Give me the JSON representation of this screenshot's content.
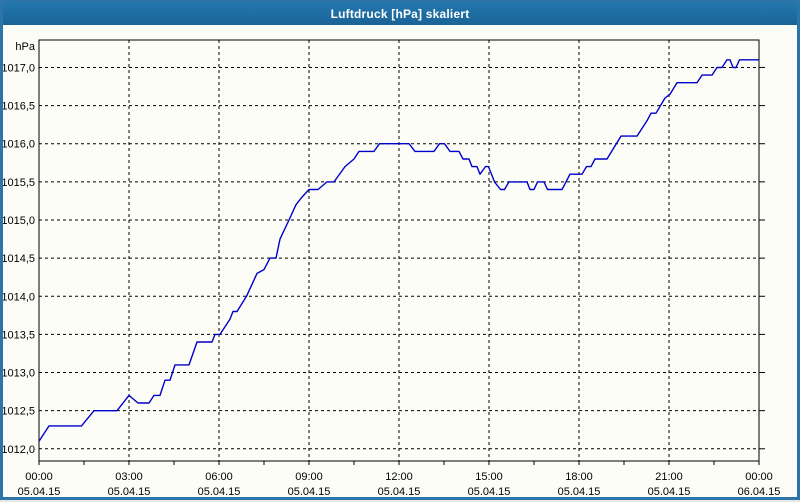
{
  "window": {
    "title": "Luftdruck [hPa] skaliert"
  },
  "colors": {
    "titlebar": "#1e6a9f",
    "window_border": "#2d74a9",
    "plot_border": "#000000",
    "grid": "#000000",
    "line": "#0000cc",
    "background": "#fdfdf8",
    "title_text": "#ffffff",
    "label_text": "#000000"
  },
  "chart_data": {
    "type": "line",
    "title": "Luftdruck [hPa] skaliert",
    "ylabel": "hPa",
    "xlabel": "",
    "grid": "dashed",
    "legend": "none",
    "ylim": [
      1011.84,
      1017.36
    ],
    "xlim_minutes": [
      0,
      1440
    ],
    "x_minor_tick_minutes": 90,
    "y_ticks": [
      {
        "value": 1017.0,
        "label": "1017,0"
      },
      {
        "value": 1016.5,
        "label": "1016,5"
      },
      {
        "value": 1016.0,
        "label": "1016,0"
      },
      {
        "value": 1015.5,
        "label": "1015,5"
      },
      {
        "value": 1015.0,
        "label": "1015,0"
      },
      {
        "value": 1014.5,
        "label": "1014,5"
      },
      {
        "value": 1014.0,
        "label": "1014,0"
      },
      {
        "value": 1013.5,
        "label": "1013,5"
      },
      {
        "value": 1013.0,
        "label": "1013,0"
      },
      {
        "value": 1012.5,
        "label": "1012,5"
      },
      {
        "value": 1012.0,
        "label": "1012,0"
      }
    ],
    "x_ticks": [
      {
        "minutes": 0,
        "time": "00:00",
        "date": "05.04.15"
      },
      {
        "minutes": 180,
        "time": "03:00",
        "date": "05.04.15"
      },
      {
        "minutes": 360,
        "time": "06:00",
        "date": "05.04.15"
      },
      {
        "minutes": 540,
        "time": "09:00",
        "date": "05.04.15"
      },
      {
        "minutes": 720,
        "time": "12:00",
        "date": "05.04.15"
      },
      {
        "minutes": 900,
        "time": "15:00",
        "date": "05.04.15"
      },
      {
        "minutes": 1080,
        "time": "18:00",
        "date": "05.04.15"
      },
      {
        "minutes": 1260,
        "time": "21:00",
        "date": "05.04.15"
      },
      {
        "minutes": 1440,
        "time": "00:00",
        "date": "06.04.15"
      }
    ],
    "series": [
      {
        "name": "Luftdruck",
        "unit": "hPa",
        "color": "#0000cc",
        "points": [
          [
            0,
            1012.1
          ],
          [
            20,
            1012.3
          ],
          [
            85,
            1012.3
          ],
          [
            110,
            1012.5
          ],
          [
            156,
            1012.5
          ],
          [
            180,
            1012.7
          ],
          [
            198,
            1012.6
          ],
          [
            220,
            1012.6
          ],
          [
            230,
            1012.7
          ],
          [
            242,
            1012.7
          ],
          [
            252,
            1012.9
          ],
          [
            262,
            1012.9
          ],
          [
            272,
            1013.1
          ],
          [
            300,
            1013.1
          ],
          [
            316,
            1013.4
          ],
          [
            346,
            1013.4
          ],
          [
            352,
            1013.5
          ],
          [
            362,
            1013.5
          ],
          [
            382,
            1013.7
          ],
          [
            388,
            1013.8
          ],
          [
            396,
            1013.8
          ],
          [
            415,
            1014.0
          ],
          [
            436,
            1014.3
          ],
          [
            450,
            1014.35
          ],
          [
            462,
            1014.5
          ],
          [
            474,
            1014.5
          ],
          [
            482,
            1014.75
          ],
          [
            500,
            1015.0
          ],
          [
            514,
            1015.2
          ],
          [
            526,
            1015.3
          ],
          [
            540,
            1015.4
          ],
          [
            558,
            1015.4
          ],
          [
            576,
            1015.5
          ],
          [
            590,
            1015.5
          ],
          [
            612,
            1015.7
          ],
          [
            630,
            1015.8
          ],
          [
            640,
            1015.9
          ],
          [
            670,
            1015.9
          ],
          [
            681,
            1016.0
          ],
          [
            740,
            1016.0
          ],
          [
            752,
            1015.9
          ],
          [
            790,
            1015.9
          ],
          [
            801,
            1016.0
          ],
          [
            811,
            1016.0
          ],
          [
            822,
            1015.9
          ],
          [
            840,
            1015.9
          ],
          [
            848,
            1015.8
          ],
          [
            860,
            1015.8
          ],
          [
            866,
            1015.7
          ],
          [
            876,
            1015.7
          ],
          [
            882,
            1015.6
          ],
          [
            893,
            1015.7
          ],
          [
            899,
            1015.7
          ],
          [
            911,
            1015.5
          ],
          [
            923,
            1015.4
          ],
          [
            931,
            1015.4
          ],
          [
            940,
            1015.5
          ],
          [
            976,
            1015.5
          ],
          [
            982,
            1015.4
          ],
          [
            990,
            1015.4
          ],
          [
            997,
            1015.5
          ],
          [
            1010,
            1015.5
          ],
          [
            1017,
            1015.4
          ],
          [
            1046,
            1015.4
          ],
          [
            1054,
            1015.5
          ],
          [
            1062,
            1015.6
          ],
          [
            1086,
            1015.6
          ],
          [
            1095,
            1015.7
          ],
          [
            1104,
            1015.7
          ],
          [
            1112,
            1015.8
          ],
          [
            1136,
            1015.8
          ],
          [
            1164,
            1016.1
          ],
          [
            1196,
            1016.1
          ],
          [
            1216,
            1016.3
          ],
          [
            1224,
            1016.4
          ],
          [
            1234,
            1016.4
          ],
          [
            1252,
            1016.6
          ],
          [
            1262,
            1016.65
          ],
          [
            1276,
            1016.8
          ],
          [
            1316,
            1016.8
          ],
          [
            1326,
            1016.9
          ],
          [
            1346,
            1016.9
          ],
          [
            1356,
            1017.0
          ],
          [
            1366,
            1017.0
          ],
          [
            1376,
            1017.1
          ],
          [
            1382,
            1017.1
          ],
          [
            1388,
            1017.0
          ],
          [
            1394,
            1017.0
          ],
          [
            1401,
            1017.1
          ],
          [
            1440,
            1017.1
          ]
        ]
      }
    ]
  }
}
